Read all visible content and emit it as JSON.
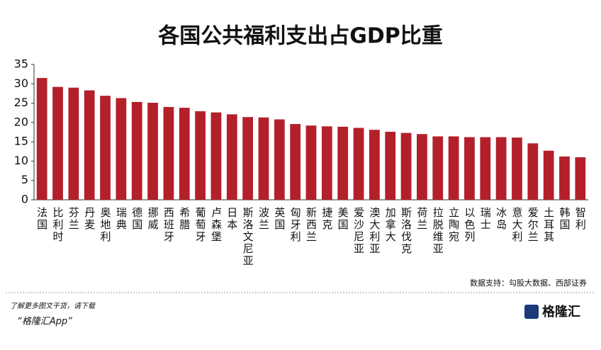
{
  "chart_data": {
    "type": "bar",
    "title": "各国公共福利支出占GDP比重",
    "categories": [
      "法国",
      "比利时",
      "芬兰",
      "丹麦",
      "奥地利",
      "瑞典",
      "德国",
      "挪威",
      "西班牙",
      "希腊",
      "葡萄牙",
      "卢森堡",
      "日本",
      "斯洛文尼亚",
      "波兰",
      "英国",
      "匈牙利",
      "新西兰",
      "捷克",
      "美国",
      "爱沙尼亚",
      "澳大利亚",
      "加拿大",
      "斯洛伐克",
      "荷兰",
      "拉脱维亚",
      "立陶宛",
      "以色列",
      "瑞士",
      "冰岛",
      "意大利",
      "爱尔兰",
      "土耳其",
      "韩国",
      "智利"
    ],
    "values": [
      31.5,
      29.2,
      29.0,
      28.3,
      26.9,
      26.3,
      25.3,
      25.1,
      24.0,
      23.8,
      22.9,
      22.6,
      22.1,
      21.4,
      21.3,
      20.8,
      19.6,
      19.2,
      19.0,
      18.9,
      18.6,
      18.1,
      17.6,
      17.3,
      17.0,
      16.4,
      16.4,
      16.2,
      16.2,
      16.2,
      16.1,
      14.6,
      12.7,
      11.2,
      11.0
    ],
    "color": "#b3202a",
    "ylim": [
      0,
      35
    ],
    "yticks": [
      0,
      5,
      10,
      15,
      20,
      25,
      30,
      35
    ],
    "grid": false,
    "source": "数据支持：勾股大数据、西部证券"
  },
  "footer": {
    "prompt": "了解更多图文干货，请下载",
    "app": "“格隆汇App”",
    "logo": "格隆汇"
  }
}
